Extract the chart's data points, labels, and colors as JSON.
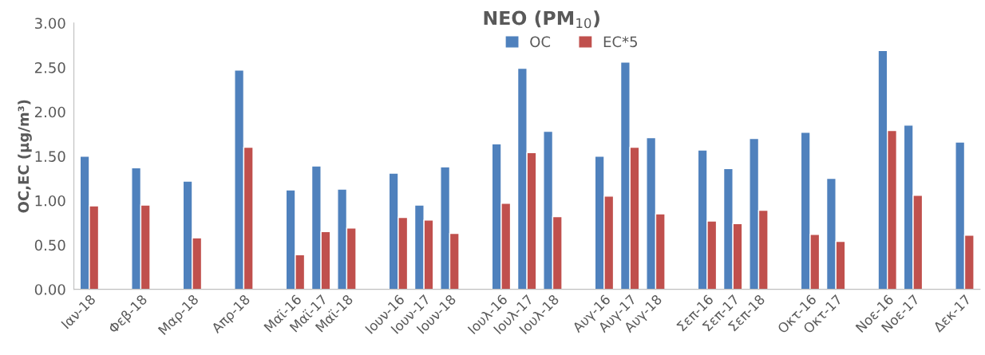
{
  "chart_data": {
    "type": "bar",
    "title": "NEO (PM$_{10}$)",
    "ylabel": "OC,EC (μg/m³)",
    "categories": [
      "Ιαν-18",
      null,
      "Φεβ-18",
      null,
      "Μαρ-18",
      null,
      "Απρ-18",
      null,
      "Μαϊ-16",
      "Μαϊ-17",
      "Μαϊ-18",
      null,
      "Ιουν-16",
      "Ιουν-17",
      "Ιουν-18",
      null,
      "Ιουλ-16",
      "Ιουλ-17",
      "Ιουλ-18",
      null,
      "Αυγ-16",
      "Αυγ-17",
      "Αυγ-18",
      null,
      "Σεπ-16",
      "Σεπ-17",
      "Σεπ-18",
      null,
      "Οκτ-16",
      "Οκτ-17",
      null,
      "Νοε-16",
      "Νοε-17",
      null,
      "Δεκ-17"
    ],
    "series": [
      {
        "name": "OC",
        "color": "#4f81bd",
        "values": [
          1.5,
          null,
          1.37,
          null,
          1.22,
          null,
          2.47,
          null,
          1.12,
          1.39,
          1.13,
          null,
          1.31,
          0.95,
          1.38,
          null,
          1.64,
          2.49,
          1.78,
          null,
          1.5,
          2.56,
          1.71,
          null,
          1.57,
          1.36,
          1.7,
          null,
          1.77,
          1.25,
          null,
          2.69,
          1.85,
          null,
          1.66
        ]
      },
      {
        "name": "EC*5",
        "color": "#c0504d",
        "values": [
          0.94,
          null,
          0.95,
          null,
          0.58,
          null,
          1.6,
          null,
          0.39,
          0.65,
          0.69,
          null,
          0.81,
          0.78,
          0.63,
          null,
          0.97,
          1.54,
          0.82,
          null,
          1.05,
          1.6,
          0.85,
          null,
          0.77,
          0.74,
          0.89,
          null,
          0.62,
          0.54,
          null,
          1.79,
          1.06,
          null,
          0.61
        ]
      }
    ],
    "ylim": [
      0,
      3
    ],
    "yticks": [
      {
        "value": 0,
        "label": "0.00"
      },
      {
        "value": 0.5,
        "label": "0.50"
      },
      {
        "value": 1,
        "label": "1.00"
      },
      {
        "value": 1.5,
        "label": "1.50"
      },
      {
        "value": 2,
        "label": "2.00"
      },
      {
        "value": 2.5,
        "label": "2.50"
      },
      {
        "value": 3,
        "label": "3.00"
      }
    ],
    "grid": false,
    "legend": "top"
  }
}
